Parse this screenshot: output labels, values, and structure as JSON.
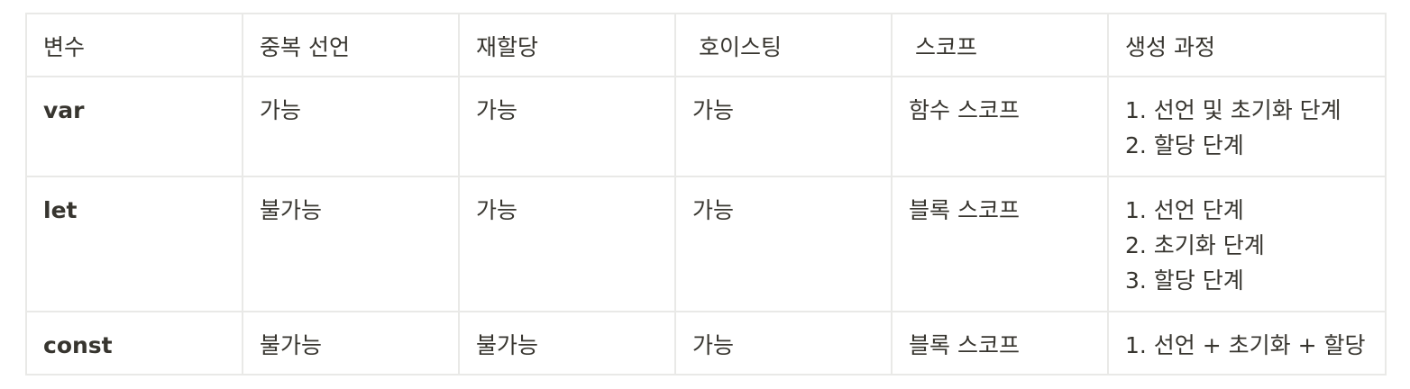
{
  "headers": [
    "변수",
    "중복 선언",
    "재할당",
    "호이스팅",
    "스코프",
    "생성 과정"
  ],
  "rows": [
    {
      "name": "var",
      "redeclare": "가능",
      "reassign": "가능",
      "hoisting": "가능",
      "scope": "함수 스코프",
      "steps": [
        "1. 선언 및 초기화 단계",
        "2. 할당 단계"
      ]
    },
    {
      "name": "let",
      "redeclare": "불가능",
      "reassign": "가능",
      "hoisting": "가능",
      "scope": "블록 스코프",
      "steps": [
        "1. 선언 단계",
        "2. 초기화 단계",
        "3. 할당 단계"
      ]
    },
    {
      "name": "const",
      "redeclare": "불가능",
      "reassign": "불가능",
      "hoisting": "가능",
      "scope": "블록 스코프",
      "steps": [
        "1. 선언 + 초기화 + 할당"
      ]
    }
  ]
}
